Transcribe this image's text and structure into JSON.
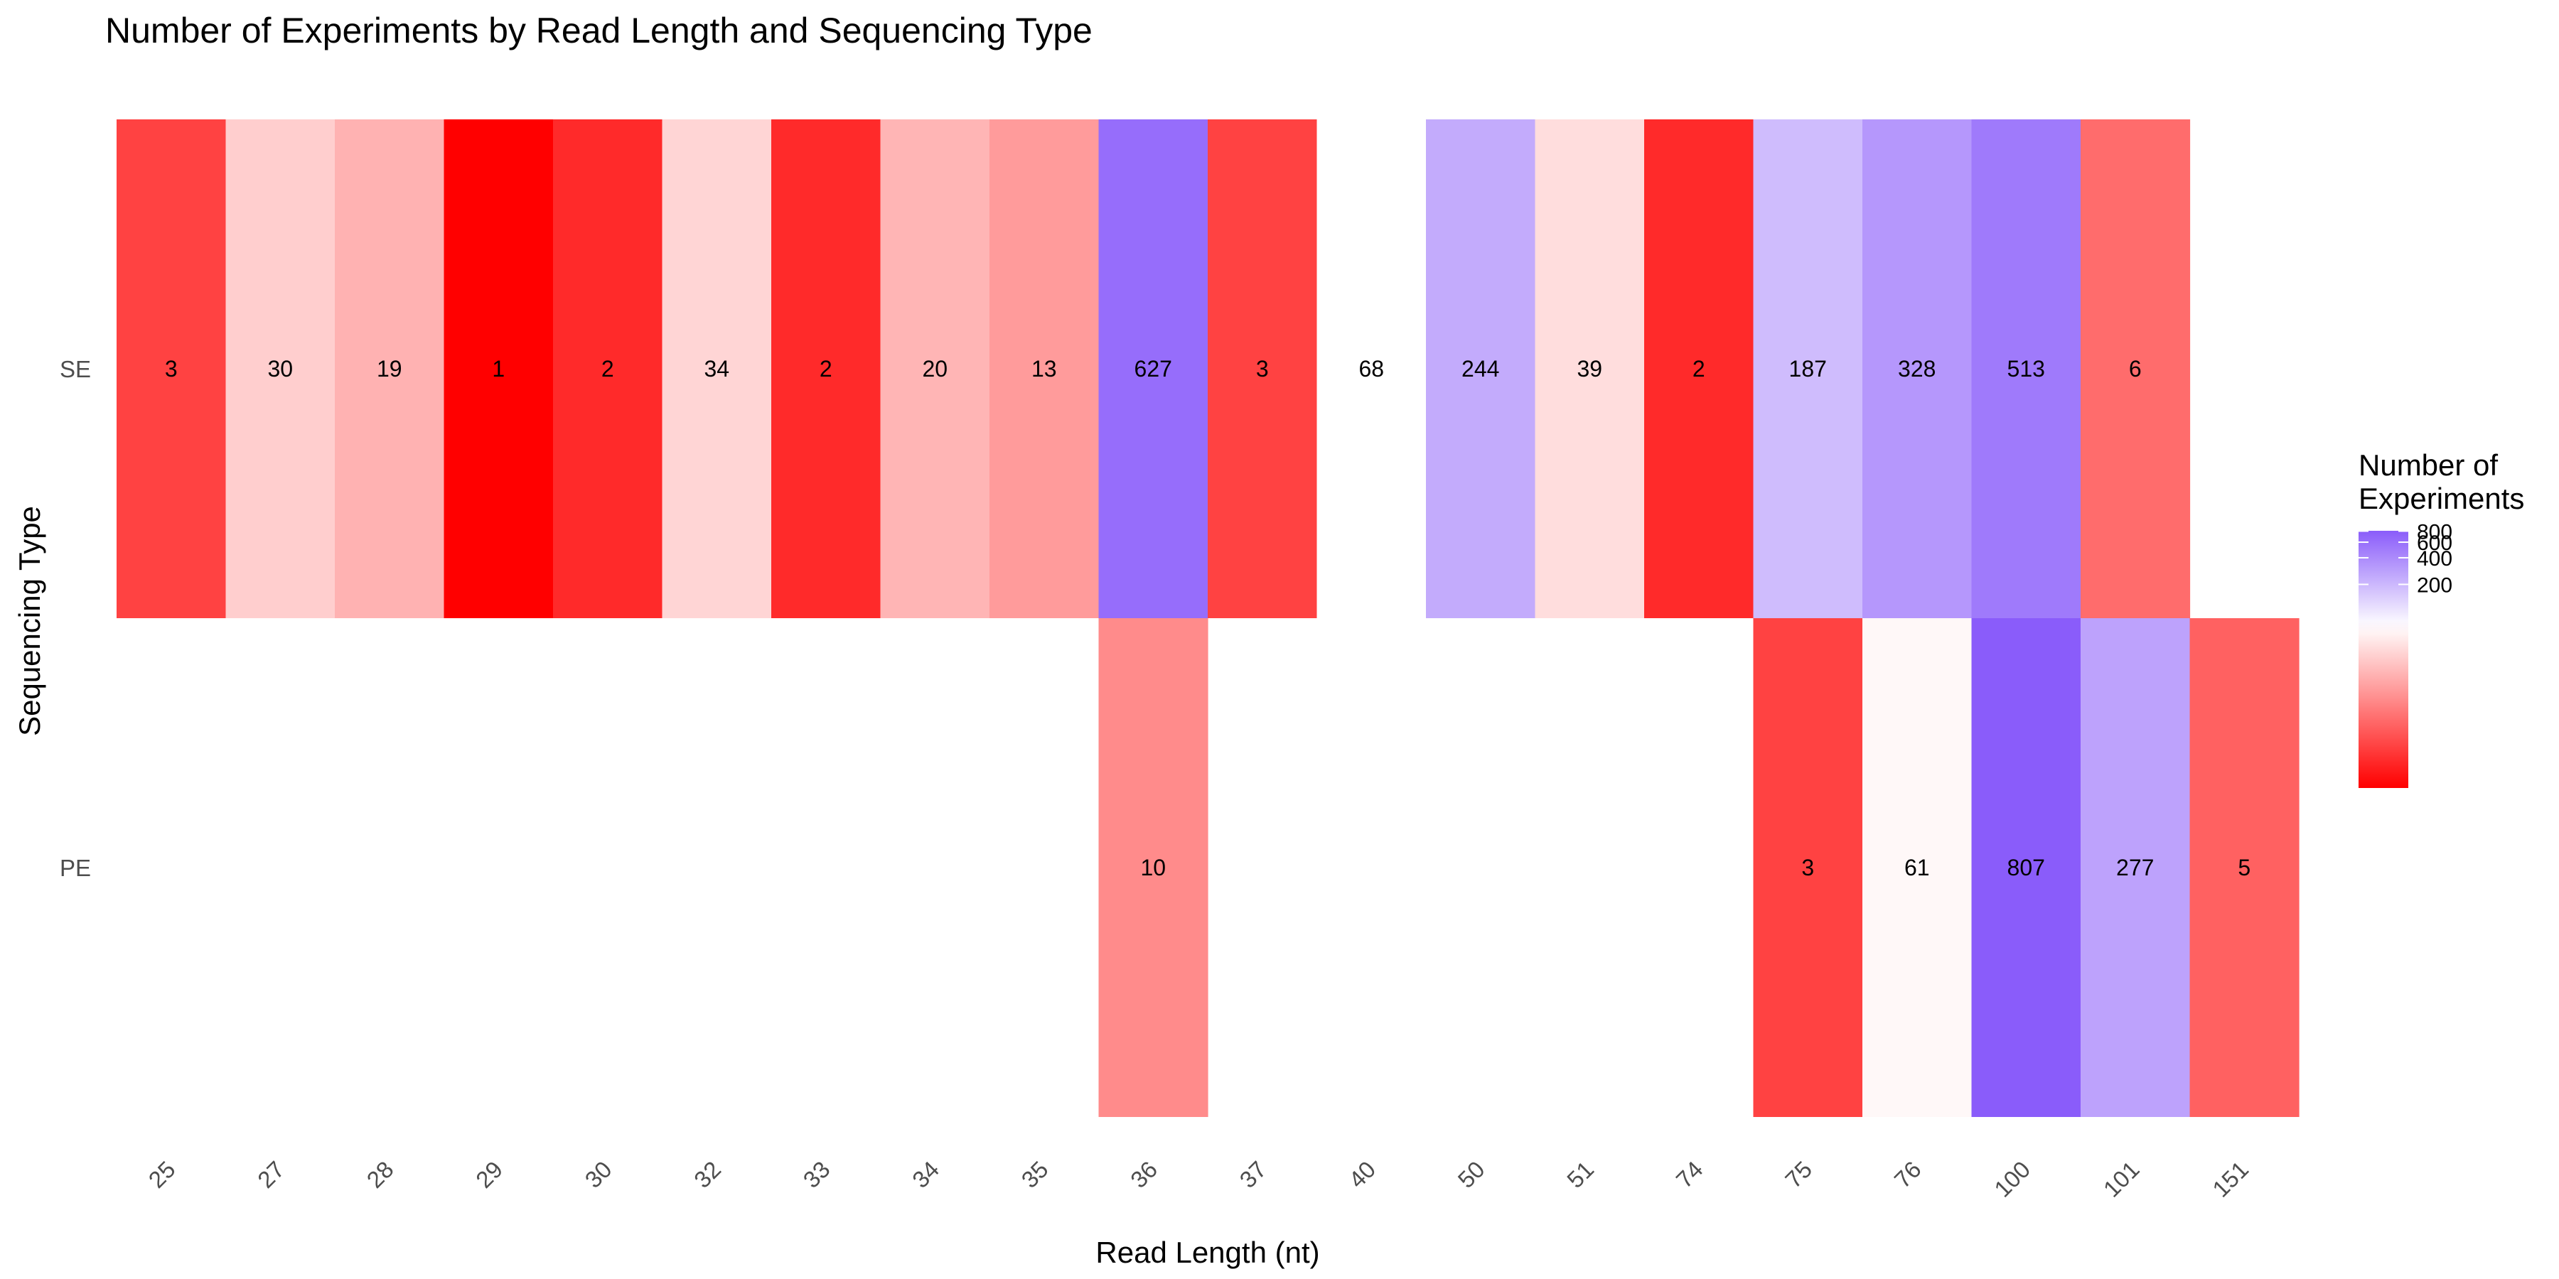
{
  "chart_data": {
    "type": "heatmap",
    "title": "Number of Experiments by Read Length and Sequencing Type",
    "xlabel": "Read Length (nt)",
    "ylabel": "Sequencing Type",
    "x_categories": [
      "25",
      "27",
      "28",
      "29",
      "30",
      "32",
      "33",
      "34",
      "35",
      "36",
      "37",
      "40",
      "50",
      "51",
      "74",
      "75",
      "76",
      "100",
      "101",
      "151"
    ],
    "y_categories": [
      "SE",
      "PE"
    ],
    "cells": [
      {
        "x": "25",
        "y": "SE",
        "value": 3
      },
      {
        "x": "27",
        "y": "SE",
        "value": 30
      },
      {
        "x": "28",
        "y": "SE",
        "value": 19
      },
      {
        "x": "29",
        "y": "SE",
        "value": 1
      },
      {
        "x": "30",
        "y": "SE",
        "value": 2
      },
      {
        "x": "32",
        "y": "SE",
        "value": 34
      },
      {
        "x": "33",
        "y": "SE",
        "value": 2
      },
      {
        "x": "34",
        "y": "SE",
        "value": 20
      },
      {
        "x": "35",
        "y": "SE",
        "value": 13
      },
      {
        "x": "36",
        "y": "SE",
        "value": 627
      },
      {
        "x": "37",
        "y": "SE",
        "value": 3
      },
      {
        "x": "40",
        "y": "SE",
        "value": 68
      },
      {
        "x": "50",
        "y": "SE",
        "value": 244
      },
      {
        "x": "51",
        "y": "SE",
        "value": 39
      },
      {
        "x": "74",
        "y": "SE",
        "value": 2
      },
      {
        "x": "75",
        "y": "SE",
        "value": 187
      },
      {
        "x": "76",
        "y": "SE",
        "value": 328
      },
      {
        "x": "100",
        "y": "SE",
        "value": 513
      },
      {
        "x": "101",
        "y": "SE",
        "value": 6
      },
      {
        "x": "36",
        "y": "PE",
        "value": 10
      },
      {
        "x": "75",
        "y": "PE",
        "value": 3
      },
      {
        "x": "76",
        "y": "PE",
        "value": 61
      },
      {
        "x": "100",
        "y": "PE",
        "value": 807
      },
      {
        "x": "101",
        "y": "PE",
        "value": 277
      },
      {
        "x": "151",
        "y": "PE",
        "value": 5
      }
    ],
    "color_scale": {
      "type": "log-diverging",
      "low_color": "#ff0000",
      "mid_color": "#ffffff",
      "high_color": "#8a5cfa",
      "min": 1,
      "mid": 68,
      "max": 807
    },
    "legend": {
      "title_lines": [
        "Number of",
        "Experiments"
      ],
      "breaks": [
        200,
        400,
        600,
        800
      ],
      "placement": "right"
    }
  }
}
